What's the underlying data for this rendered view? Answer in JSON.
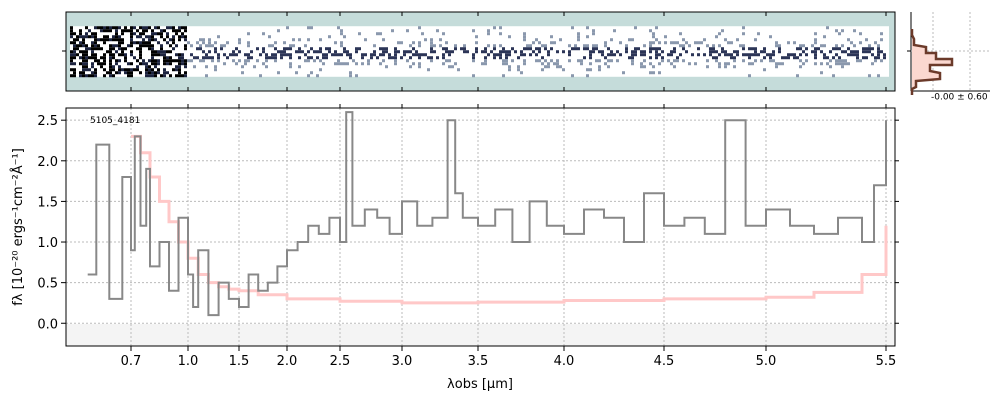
{
  "chart_data": [
    {
      "type": "heatmap",
      "panel": "2d-spectrum",
      "colors": {
        "background": "#c5dcda",
        "trace": "#1d2440"
      },
      "trace_rows_fraction": [
        0.35,
        0.85
      ]
    },
    {
      "type": "line",
      "panel": "1d-spectrum",
      "label": "5105_4181",
      "xlabel": "λobs [μm]",
      "ylabel": "fλ [10⁻²⁰ ergs⁻¹cm⁻²Å⁻¹]",
      "ylim": [
        -0.28,
        2.65
      ],
      "x_ticks": [
        0.7,
        1.0,
        1.5,
        2.0,
        2.5,
        3.0,
        3.5,
        4.0,
        4.5,
        5.0,
        5.5
      ],
      "x_tick_labels": [
        "0.7",
        "1.0",
        "1.5",
        "2.0",
        "2.5",
        "3.0",
        "3.5",
        "4.0",
        "4.5",
        "5.0",
        "5.5"
      ],
      "y_ticks": [
        0.0,
        0.5,
        1.0,
        1.5,
        2.0,
        2.5
      ],
      "y_tick_labels": [
        "0.0",
        "0.5",
        "1.0",
        "1.5",
        "2.0",
        "2.5"
      ],
      "grid": true,
      "series": [
        {
          "role": "data",
          "color": "#888888",
          "x": [
            0.6,
            0.62,
            0.65,
            0.68,
            0.7,
            0.72,
            0.75,
            0.78,
            0.8,
            0.85,
            0.9,
            0.95,
            1.0,
            1.05,
            1.1,
            1.2,
            1.3,
            1.4,
            1.5,
            1.6,
            1.7,
            1.8,
            1.9,
            2.0,
            2.1,
            2.2,
            2.3,
            2.4,
            2.5,
            2.55,
            2.6,
            2.7,
            2.8,
            2.9,
            3.0,
            3.1,
            3.2,
            3.3,
            3.35,
            3.4,
            3.5,
            3.6,
            3.7,
            3.8,
            3.9,
            4.0,
            4.1,
            4.2,
            4.3,
            4.4,
            4.5,
            4.6,
            4.7,
            4.8,
            4.9,
            5.0,
            5.1,
            5.2,
            5.3,
            5.4,
            5.45,
            5.5
          ],
          "y": [
            0.6,
            2.2,
            0.3,
            1.8,
            0.9,
            2.3,
            1.2,
            1.9,
            0.7,
            1.0,
            0.4,
            1.3,
            0.6,
            0.2,
            0.9,
            0.1,
            0.5,
            0.3,
            0.2,
            0.6,
            0.4,
            0.5,
            0.7,
            0.9,
            1.0,
            1.2,
            1.1,
            1.3,
            1.0,
            2.6,
            1.2,
            1.4,
            1.3,
            1.1,
            1.5,
            1.2,
            1.3,
            2.5,
            1.6,
            1.3,
            1.2,
            1.4,
            1.0,
            1.5,
            1.2,
            1.1,
            1.4,
            1.3,
            1.0,
            1.6,
            1.2,
            1.3,
            1.1,
            2.5,
            1.2,
            1.4,
            1.2,
            1.1,
            1.3,
            1.0,
            1.7,
            2.5
          ]
        },
        {
          "role": "model",
          "color": "#ffc8c8",
          "x": [
            0.7,
            0.75,
            0.8,
            0.85,
            0.9,
            0.95,
            1.0,
            1.1,
            1.2,
            1.3,
            1.4,
            1.5,
            1.7,
            2.0,
            2.5,
            3.0,
            3.5,
            4.0,
            4.5,
            5.0,
            5.2,
            5.4,
            5.5
          ],
          "y": [
            2.3,
            2.1,
            1.8,
            1.5,
            1.25,
            1.0,
            0.8,
            0.6,
            0.5,
            0.45,
            0.42,
            0.4,
            0.35,
            0.3,
            0.27,
            0.25,
            0.26,
            0.28,
            0.3,
            0.32,
            0.38,
            0.6,
            1.2
          ]
        }
      ]
    },
    {
      "type": "histogram",
      "panel": "residual-histogram",
      "label": "-0.00 ± 0.60",
      "colors": {
        "fill": "#fbd8d0",
        "line": "#6b3a2a"
      }
    }
  ]
}
